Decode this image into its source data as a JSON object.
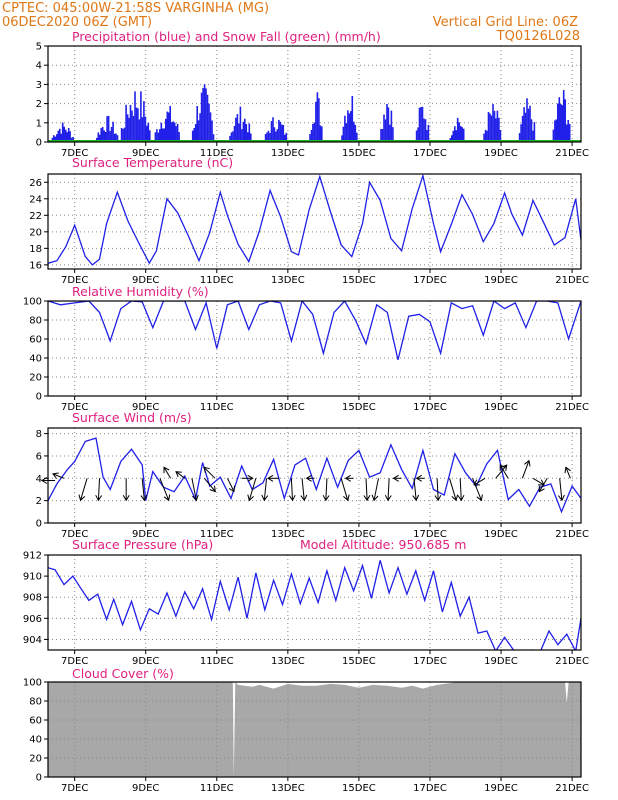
{
  "header": {
    "line1": "CPTEC:   045:00W-21:58S  VARGINHA (MG)",
    "line2": "06DEC2020 06Z (GMT)",
    "grid_note": "Vertical Grid Line: 06Z",
    "code": "TQ0126L028"
  },
  "chart_data": [
    {
      "id": "precip",
      "type": "bar",
      "title": "Precipitation (blue) and Snow Fall (green) (mm/h)",
      "ylim": [
        0,
        5
      ],
      "yticks": [
        "0",
        "1",
        "2",
        "3",
        "4",
        "5"
      ],
      "x_tick_labels": [
        "7DEC",
        "9DEC",
        "11DEC",
        "13DEC",
        "15DEC",
        "17DEC",
        "19DEC",
        "21DEC"
      ],
      "x_tick_days": [
        7,
        9,
        11,
        13,
        15,
        17,
        19,
        21
      ],
      "xlim_days": [
        6.25,
        21.25
      ],
      "grid": true,
      "series": [
        {
          "color": "#2020e8",
          "bursts": [
            [
              6.35,
              6.95,
              1.1
            ],
            [
              7.6,
              8.2,
              1.4
            ],
            [
              8.3,
              9.1,
              3.1
            ],
            [
              9.25,
              9.95,
              2.0
            ],
            [
              10.3,
              10.9,
              3.1
            ],
            [
              11.35,
              11.95,
              1.9
            ],
            [
              12.35,
              12.95,
              1.5
            ],
            [
              13.6,
              13.95,
              3.0
            ],
            [
              14.5,
              14.95,
              3.0
            ],
            [
              15.6,
              15.95,
              3.0
            ],
            [
              16.6,
              16.95,
              2.4
            ],
            [
              17.55,
              17.95,
              1.7
            ],
            [
              18.5,
              19.0,
              2.1
            ],
            [
              19.5,
              19.95,
              2.3
            ],
            [
              20.45,
              20.95,
              3.0
            ]
          ]
        },
        {
          "color": "#20b020",
          "values": [
            0
          ]
        }
      ]
    },
    {
      "id": "temp",
      "type": "line",
      "title": "Surface Temperature (nC)",
      "ylim": [
        15.5,
        27
      ],
      "yticks": [
        "16",
        "18",
        "20",
        "22",
        "24",
        "26"
      ],
      "ytick_values": [
        16,
        18,
        20,
        22,
        24,
        26
      ],
      "x_tick_labels": [
        "7DEC",
        "9DEC",
        "11DEC",
        "13DEC",
        "15DEC",
        "17DEC",
        "19DEC",
        "21DEC"
      ],
      "grid": true,
      "color": "#2020e8",
      "x": [
        6.25,
        6.5,
        6.75,
        7.0,
        7.3,
        7.5,
        7.7,
        7.9,
        8.2,
        8.5,
        8.8,
        9.1,
        9.3,
        9.6,
        9.9,
        10.2,
        10.5,
        10.8,
        11.1,
        11.3,
        11.6,
        11.9,
        12.2,
        12.5,
        12.8,
        13.1,
        13.3,
        13.6,
        13.9,
        14.2,
        14.5,
        14.8,
        15.1,
        15.3,
        15.6,
        15.9,
        16.2,
        16.5,
        16.8,
        17.1,
        17.3,
        17.6,
        17.9,
        18.2,
        18.5,
        18.8,
        19.1,
        19.3,
        19.6,
        19.9,
        20.2,
        20.5,
        20.8,
        21.1,
        21.25
      ],
      "y": [
        16.2,
        16.5,
        18.2,
        20.8,
        17.0,
        16.0,
        16.7,
        21.0,
        24.8,
        21.3,
        18.7,
        16.2,
        17.7,
        24.0,
        22.3,
        19.5,
        16.5,
        19.9,
        24.8,
        22.0,
        18.5,
        16.4,
        20.1,
        25.0,
        21.8,
        17.6,
        17.2,
        22.7,
        26.7,
        22.4,
        18.4,
        17.0,
        21.0,
        26.0,
        23.8,
        19.2,
        17.7,
        22.8,
        26.8,
        21.0,
        17.6,
        20.9,
        24.5,
        22.1,
        18.8,
        21.0,
        24.7,
        22.2,
        19.6,
        23.8,
        21.1,
        18.4,
        19.3,
        24.0,
        19.0
      ]
    },
    {
      "id": "rh",
      "type": "line",
      "title": "Relative Humidity (%)",
      "ylim": [
        0,
        100
      ],
      "yticks": [
        "0",
        "20",
        "40",
        "60",
        "80",
        "100"
      ],
      "ytick_values": [
        0,
        20,
        40,
        60,
        80,
        100
      ],
      "x_tick_labels": [
        "7DEC",
        "9DEC",
        "11DEC",
        "13DEC",
        "15DEC",
        "17DEC",
        "19DEC",
        "21DEC"
      ],
      "grid": true,
      "color": "#2020e8",
      "x": [
        6.25,
        6.6,
        7.0,
        7.4,
        7.7,
        8.0,
        8.3,
        8.6,
        8.9,
        9.2,
        9.5,
        9.8,
        10.1,
        10.4,
        10.7,
        11.0,
        11.3,
        11.6,
        11.9,
        12.2,
        12.5,
        12.8,
        13.1,
        13.4,
        13.7,
        14.0,
        14.3,
        14.6,
        14.9,
        15.2,
        15.5,
        15.8,
        16.1,
        16.4,
        16.7,
        17.0,
        17.3,
        17.6,
        17.9,
        18.2,
        18.5,
        18.8,
        19.1,
        19.4,
        19.7,
        20.0,
        20.3,
        20.6,
        20.9,
        21.25
      ],
      "y": [
        100,
        96,
        98,
        100,
        88,
        58,
        92,
        100,
        99,
        72,
        100,
        100,
        100,
        70,
        98,
        50,
        96,
        100,
        70,
        96,
        100,
        98,
        58,
        100,
        86,
        45,
        88,
        100,
        80,
        55,
        96,
        88,
        38,
        84,
        86,
        78,
        45,
        98,
        92,
        95,
        64,
        100,
        92,
        98,
        72,
        100,
        100,
        98,
        60,
        100
      ]
    },
    {
      "id": "wind",
      "type": "line",
      "title": "Surface Wind (m/s)",
      "ylim": [
        0,
        8.5
      ],
      "yticks": [
        "0",
        "2",
        "4",
        "6",
        "8"
      ],
      "ytick_values": [
        0,
        2,
        4,
        6,
        8
      ],
      "x_tick_labels": [
        "7DEC",
        "9DEC",
        "11DEC",
        "13DEC",
        "15DEC",
        "17DEC",
        "19DEC",
        "21DEC"
      ],
      "grid": true,
      "color": "#2020e8",
      "x": [
        6.25,
        6.5,
        6.8,
        7.0,
        7.3,
        7.6,
        7.8,
        8.0,
        8.3,
        8.6,
        8.9,
        9.0,
        9.2,
        9.5,
        9.8,
        10.1,
        10.4,
        10.6,
        10.8,
        11.1,
        11.4,
        11.7,
        12.0,
        12.3,
        12.6,
        12.9,
        13.2,
        13.5,
        13.8,
        14.1,
        14.4,
        14.7,
        15.0,
        15.3,
        15.6,
        15.9,
        16.2,
        16.5,
        16.8,
        17.1,
        17.4,
        17.7,
        18.0,
        18.3,
        18.6,
        18.9,
        19.2,
        19.5,
        19.8,
        20.1,
        20.4,
        20.7,
        21.0,
        21.25
      ],
      "y": [
        2.0,
        3.5,
        4.8,
        5.5,
        7.3,
        7.6,
        4.1,
        3.0,
        5.5,
        6.6,
        5.2,
        2.0,
        4.6,
        3.2,
        2.8,
        4.2,
        2.1,
        5.4,
        3.3,
        4.1,
        2.2,
        5.1,
        3.0,
        3.6,
        5.7,
        2.2,
        5.2,
        5.8,
        3.0,
        5.8,
        3.2,
        5.6,
        6.5,
        4.1,
        4.5,
        7.0,
        4.8,
        3.1,
        6.5,
        3.0,
        2.5,
        6.2,
        4.5,
        3.3,
        5.3,
        6.5,
        2.1,
        3.0,
        1.5,
        3.2,
        3.5,
        1.0,
        3.3,
        2.2
      ],
      "arrows": [
        {
          "day": 6.45,
          "y": 3.8,
          "dx": -1,
          "dy": 0
        },
        {
          "day": 6.7,
          "y": 4.0,
          "dx": -0.5,
          "dy": 0.2
        },
        {
          "day": 7.35,
          "y": 4.0,
          "dx": -0.3,
          "dy": -1
        },
        {
          "day": 7.7,
          "y": 4.0,
          "dx": -0.05,
          "dy": -1
        },
        {
          "day": 8.45,
          "y": 4.0,
          "dx": 0,
          "dy": -1
        },
        {
          "day": 8.9,
          "y": 4.0,
          "dx": 0.1,
          "dy": -1
        },
        {
          "day": 9.4,
          "y": 4.0,
          "dx": 0.4,
          "dy": -1
        },
        {
          "day": 9.7,
          "y": 4.0,
          "dx": -0.3,
          "dy": 0.5
        },
        {
          "day": 10.1,
          "y": 4.0,
          "dx": -0.4,
          "dy": 0.3
        },
        {
          "day": 10.3,
          "y": 4.0,
          "dx": 0.2,
          "dy": -1
        },
        {
          "day": 10.65,
          "y": 4.0,
          "dx": 0.5,
          "dy": -0.6
        },
        {
          "day": 10.95,
          "y": 4.0,
          "dx": -0.5,
          "dy": 0.5
        },
        {
          "day": 11.3,
          "y": 4.0,
          "dx": 0.3,
          "dy": -0.6
        },
        {
          "day": 11.7,
          "y": 4.0,
          "dx": 0.5,
          "dy": 0
        },
        {
          "day": 12.1,
          "y": 4.0,
          "dx": -0.3,
          "dy": -1
        },
        {
          "day": 12.4,
          "y": 4.0,
          "dx": -0.1,
          "dy": -1
        },
        {
          "day": 12.75,
          "y": 4.0,
          "dx": -0.5,
          "dy": 0
        },
        {
          "day": 13.1,
          "y": 4.0,
          "dx": 0.05,
          "dy": -1
        },
        {
          "day": 13.4,
          "y": 4.0,
          "dx": 0.1,
          "dy": -1
        },
        {
          "day": 13.75,
          "y": 4.0,
          "dx": -0.6,
          "dy": 0
        },
        {
          "day": 14.1,
          "y": 4.0,
          "dx": -0.05,
          "dy": -1
        },
        {
          "day": 14.5,
          "y": 4.0,
          "dx": 0.3,
          "dy": -1
        },
        {
          "day": 14.85,
          "y": 4.0,
          "dx": -0.6,
          "dy": 0
        },
        {
          "day": 15.2,
          "y": 4.0,
          "dx": 0.05,
          "dy": -1
        },
        {
          "day": 15.55,
          "y": 4.0,
          "dx": -0.2,
          "dy": -1
        },
        {
          "day": 15.85,
          "y": 4.0,
          "dx": -0.05,
          "dy": -1
        },
        {
          "day": 16.2,
          "y": 4.0,
          "dx": -0.6,
          "dy": 0
        },
        {
          "day": 16.55,
          "y": 4.0,
          "dx": 0.1,
          "dy": -1
        },
        {
          "day": 16.85,
          "y": 4.0,
          "dx": -0.6,
          "dy": 0
        },
        {
          "day": 17.2,
          "y": 4.0,
          "dx": 0.05,
          "dy": -1
        },
        {
          "day": 17.55,
          "y": 4.0,
          "dx": 0.3,
          "dy": -1
        },
        {
          "day": 17.85,
          "y": 4.0,
          "dx": 0.05,
          "dy": -1
        },
        {
          "day": 18.2,
          "y": 4.0,
          "dx": 0.4,
          "dy": -1
        },
        {
          "day": 18.55,
          "y": 4.0,
          "dx": -0.5,
          "dy": -0.3
        },
        {
          "day": 18.85,
          "y": 4.0,
          "dx": 0.5,
          "dy": 0.6
        },
        {
          "day": 19.2,
          "y": 4.0,
          "dx": -0.6,
          "dy": 0.6
        },
        {
          "day": 19.6,
          "y": 4.0,
          "dx": 0.3,
          "dy": 0.8
        },
        {
          "day": 19.9,
          "y": 4.0,
          "dx": 0.5,
          "dy": -0.3
        },
        {
          "day": 20.3,
          "y": 4.0,
          "dx": -0.6,
          "dy": -0.6
        },
        {
          "day": 20.65,
          "y": 4.0,
          "dx": 0.1,
          "dy": -1
        },
        {
          "day": 20.95,
          "y": 4.0,
          "dx": -0.2,
          "dy": 0.5
        }
      ]
    },
    {
      "id": "pressure",
      "type": "line",
      "title": "Surface Pressure (hPa)",
      "subtitle": "Model Altitude: 950.685 m",
      "ylim": [
        903,
        912
      ],
      "yticks": [
        "904",
        "906",
        "908",
        "910",
        "912"
      ],
      "ytick_values": [
        904,
        906,
        908,
        910,
        912
      ],
      "x_tick_labels": [
        "7DEC",
        "9DEC",
        "11DEC",
        "13DEC",
        "15DEC",
        "17DEC",
        "19DEC",
        "21DEC"
      ],
      "grid": true,
      "color": "#2020e8",
      "x": [
        6.25,
        6.45,
        6.7,
        6.95,
        7.2,
        7.4,
        7.65,
        7.9,
        8.1,
        8.35,
        8.6,
        8.85,
        9.1,
        9.35,
        9.6,
        9.85,
        10.1,
        10.35,
        10.6,
        10.85,
        11.1,
        11.35,
        11.6,
        11.85,
        12.1,
        12.35,
        12.6,
        12.85,
        13.1,
        13.35,
        13.6,
        13.85,
        14.1,
        14.35,
        14.6,
        14.85,
        15.1,
        15.35,
        15.6,
        15.85,
        16.1,
        16.35,
        16.6,
        16.85,
        17.1,
        17.35,
        17.6,
        17.85,
        18.1,
        18.35,
        18.6,
        18.85,
        19.1,
        19.35,
        19.6,
        19.85,
        20.1,
        20.35,
        20.6,
        20.85,
        21.1,
        21.25
      ],
      "y": [
        910.8,
        910.6,
        909.2,
        910.0,
        908.7,
        907.7,
        908.3,
        905.9,
        907.8,
        905.4,
        907.6,
        904.9,
        906.9,
        906.4,
        908.4,
        906.2,
        908.5,
        906.9,
        908.8,
        905.9,
        909.5,
        906.8,
        909.9,
        906.0,
        910.3,
        906.8,
        909.6,
        907.3,
        910.2,
        907.4,
        909.8,
        907.5,
        910.5,
        907.7,
        910.8,
        908.6,
        911.0,
        907.9,
        911.5,
        908.4,
        910.8,
        908.3,
        910.5,
        907.7,
        910.5,
        906.6,
        909.4,
        906.2,
        908.0,
        904.6,
        904.8,
        902.9,
        904.2,
        903.0,
        902.4,
        903.0,
        902.8,
        904.8,
        903.5,
        904.5,
        902.9,
        906.0
      ]
    },
    {
      "id": "cloud",
      "type": "area",
      "title": "Cloud Cover (%)",
      "ylim": [
        0,
        100
      ],
      "yticks": [
        "0",
        "20",
        "40",
        "60",
        "80",
        "100"
      ],
      "ytick_values": [
        0,
        20,
        40,
        60,
        80,
        100
      ],
      "x_tick_labels": [
        "7DEC",
        "9DEC",
        "11DEC",
        "13DEC",
        "15DEC",
        "17DEC",
        "19DEC",
        "21DEC"
      ],
      "grid": true,
      "color": "#a8a8a8",
      "x": [
        6.25,
        11.45,
        11.48,
        11.52,
        11.6,
        12.0,
        12.2,
        12.6,
        13.0,
        13.4,
        13.8,
        14.2,
        14.6,
        15.0,
        15.4,
        15.8,
        16.2,
        16.5,
        16.8,
        17.2,
        17.8,
        18.4,
        19.0,
        19.5,
        20.0,
        20.4,
        20.8,
        20.85,
        20.9,
        21.25
      ],
      "y": [
        100,
        100,
        0,
        100,
        97,
        95,
        97,
        93,
        98,
        96,
        96,
        98,
        97,
        94,
        97,
        96,
        94,
        96,
        93,
        97,
        100,
        100,
        100,
        100,
        100,
        100,
        100,
        78,
        100,
        100
      ]
    }
  ]
}
